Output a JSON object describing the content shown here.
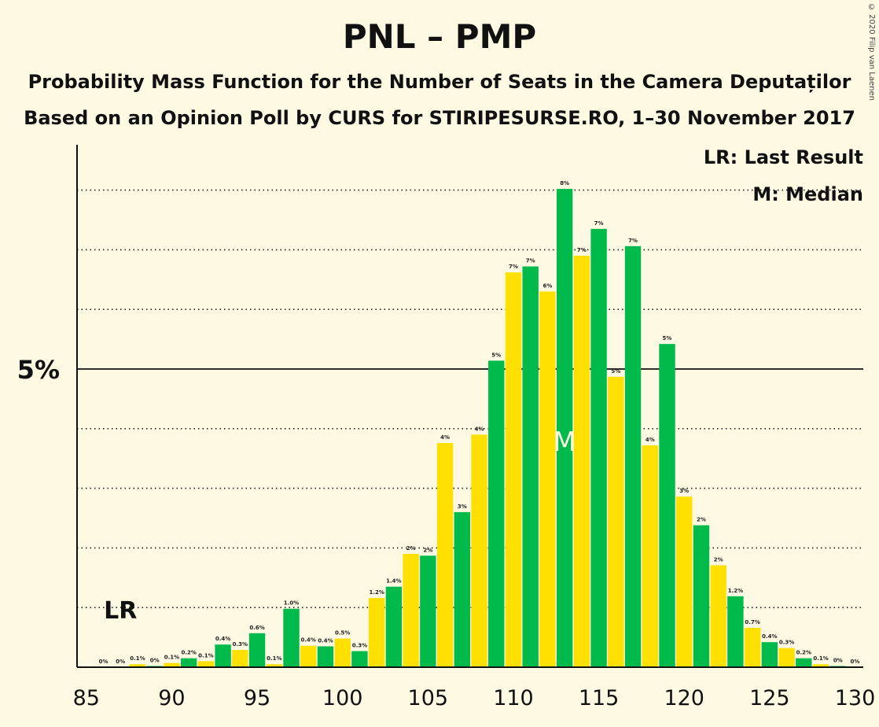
{
  "chart_data": {
    "type": "bar",
    "title": "PNL – PMP",
    "subtitle1": "Probability Mass Function for the Number of Seats in the Camera Deputaților",
    "subtitle2": "Based on an Opinion Poll by CURS for STIRIPESURSE.RO, 1–30 November 2017",
    "copyright": "© 2020 Filip van Laenen",
    "legend": {
      "lr": "LR: Last Result",
      "m": "M: Median"
    },
    "xlim": [
      85,
      130
    ],
    "ylim": [
      0,
      8.9
    ],
    "x_ticks": [
      85,
      90,
      95,
      100,
      105,
      110,
      115,
      120,
      125,
      130
    ],
    "y_ticks": [
      {
        "value": 5,
        "label": "5%"
      }
    ],
    "gridlines": [
      1,
      2,
      3,
      4,
      6,
      7,
      8
    ],
    "last_result": {
      "seat": 87,
      "label": "LR"
    },
    "median": {
      "seat": 113,
      "label": "M"
    },
    "colors": {
      "even": "#ffe000",
      "odd": "#00bb4b",
      "background": "#fdf9e3"
    },
    "bars": [
      {
        "seat": 86,
        "value": 0.0,
        "label": "0%"
      },
      {
        "seat": 87,
        "value": 0.0,
        "label": "0%"
      },
      {
        "seat": 88,
        "value": 0.05,
        "label": "0.1%"
      },
      {
        "seat": 89,
        "value": 0.02,
        "label": "0%"
      },
      {
        "seat": 90,
        "value": 0.07,
        "label": "0.1%"
      },
      {
        "seat": 91,
        "value": 0.15,
        "label": "0.2%"
      },
      {
        "seat": 92,
        "value": 0.1,
        "label": "0.1%"
      },
      {
        "seat": 93,
        "value": 0.38,
        "label": "0.4%"
      },
      {
        "seat": 94,
        "value": 0.29,
        "label": "0.3%"
      },
      {
        "seat": 95,
        "value": 0.57,
        "label": "0.6%"
      },
      {
        "seat": 96,
        "value": 0.05,
        "label": "0.1%"
      },
      {
        "seat": 97,
        "value": 0.98,
        "label": "1.0%"
      },
      {
        "seat": 98,
        "value": 0.36,
        "label": "0.4%"
      },
      {
        "seat": 99,
        "value": 0.35,
        "label": "0.4%"
      },
      {
        "seat": 100,
        "value": 0.48,
        "label": "0.5%"
      },
      {
        "seat": 101,
        "value": 0.27,
        "label": "0.3%"
      },
      {
        "seat": 102,
        "value": 1.16,
        "label": "1.2%"
      },
      {
        "seat": 103,
        "value": 1.35,
        "label": "1.4%"
      },
      {
        "seat": 104,
        "value": 1.9,
        "label": "2%"
      },
      {
        "seat": 105,
        "value": 1.87,
        "label": "2%"
      },
      {
        "seat": 106,
        "value": 3.76,
        "label": "4%"
      },
      {
        "seat": 107,
        "value": 2.6,
        "label": "3%"
      },
      {
        "seat": 108,
        "value": 3.9,
        "label": "4%"
      },
      {
        "seat": 109,
        "value": 5.14,
        "label": "5%"
      },
      {
        "seat": 110,
        "value": 6.62,
        "label": "7%"
      },
      {
        "seat": 111,
        "value": 6.72,
        "label": "7%"
      },
      {
        "seat": 112,
        "value": 6.3,
        "label": "6%"
      },
      {
        "seat": 113,
        "value": 8.02,
        "label": "8%"
      },
      {
        "seat": 114,
        "value": 6.9,
        "label": "7%"
      },
      {
        "seat": 115,
        "value": 7.35,
        "label": "7%"
      },
      {
        "seat": 116,
        "value": 4.87,
        "label": "5%"
      },
      {
        "seat": 117,
        "value": 7.06,
        "label": "7%"
      },
      {
        "seat": 118,
        "value": 3.72,
        "label": "4%"
      },
      {
        "seat": 119,
        "value": 5.42,
        "label": "5%"
      },
      {
        "seat": 120,
        "value": 2.86,
        "label": "3%"
      },
      {
        "seat": 121,
        "value": 2.38,
        "label": "2%"
      },
      {
        "seat": 122,
        "value": 1.71,
        "label": "2%"
      },
      {
        "seat": 123,
        "value": 1.19,
        "label": "1.2%"
      },
      {
        "seat": 124,
        "value": 0.66,
        "label": "0.7%"
      },
      {
        "seat": 125,
        "value": 0.42,
        "label": "0.4%"
      },
      {
        "seat": 126,
        "value": 0.32,
        "label": "0.3%"
      },
      {
        "seat": 127,
        "value": 0.15,
        "label": "0.2%"
      },
      {
        "seat": 128,
        "value": 0.05,
        "label": "0.1%"
      },
      {
        "seat": 129,
        "value": 0.02,
        "label": "0%"
      },
      {
        "seat": 130,
        "value": 0.0,
        "label": "0%"
      }
    ]
  }
}
